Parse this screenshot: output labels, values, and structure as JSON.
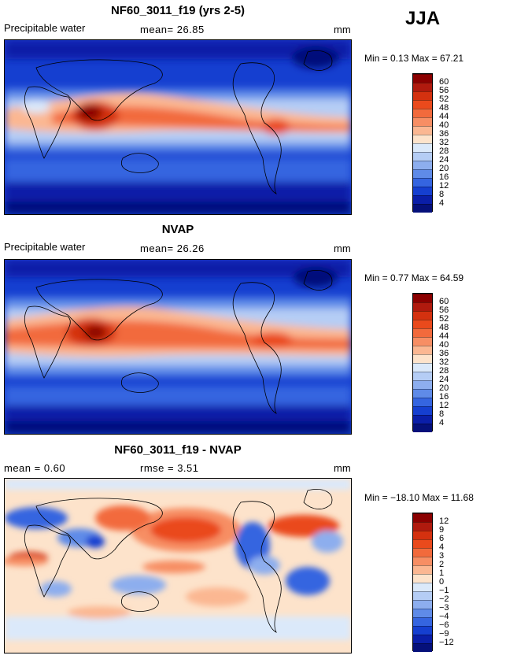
{
  "season": "JJA",
  "panels": [
    {
      "title": "NF60_3011_f19 (yrs 2-5)",
      "left_label": "Precipitable water",
      "center_label": "mean=   26.85",
      "units": "mm",
      "min_max": "Min =   0.13  Max =  67.21",
      "kind": "field",
      "levels": [
        "60",
        "56",
        "52",
        "48",
        "44",
        "40",
        "36",
        "32",
        "28",
        "24",
        "20",
        "16",
        "12",
        "8",
        "4"
      ]
    },
    {
      "title": "NVAP",
      "left_label": "Precipitable water",
      "center_label": "mean=   26.26",
      "units": "mm",
      "min_max": "Min =   0.77  Max =  64.59",
      "kind": "field",
      "levels": [
        "60",
        "56",
        "52",
        "48",
        "44",
        "40",
        "36",
        "32",
        "28",
        "24",
        "20",
        "16",
        "12",
        "8",
        "4"
      ]
    },
    {
      "title": "NF60_3011_f19 - NVAP",
      "left_label": "mean =    0.60",
      "center_label": "rmse =     3.51",
      "units": "mm",
      "min_max": "Min = −18.10  Max =  11.68",
      "kind": "diff",
      "levels": [
        "12",
        "9",
        "6",
        "4",
        "3",
        "2",
        "1",
        "0",
        "−1",
        "−2",
        "−3",
        "−4",
        "−6",
        "−9",
        "−12"
      ]
    }
  ],
  "colors": {
    "scale": [
      "#8b0000",
      "#b01a0e",
      "#d4310f",
      "#ea4a1c",
      "#f26a3c",
      "#f78e64",
      "#fbb792",
      "#fde3cb",
      "#dbe9fa",
      "#b5cdf5",
      "#8daeee",
      "#5f8be8",
      "#3565e0",
      "#153fd0",
      "#0a1ea8",
      "#05107a"
    ]
  }
}
